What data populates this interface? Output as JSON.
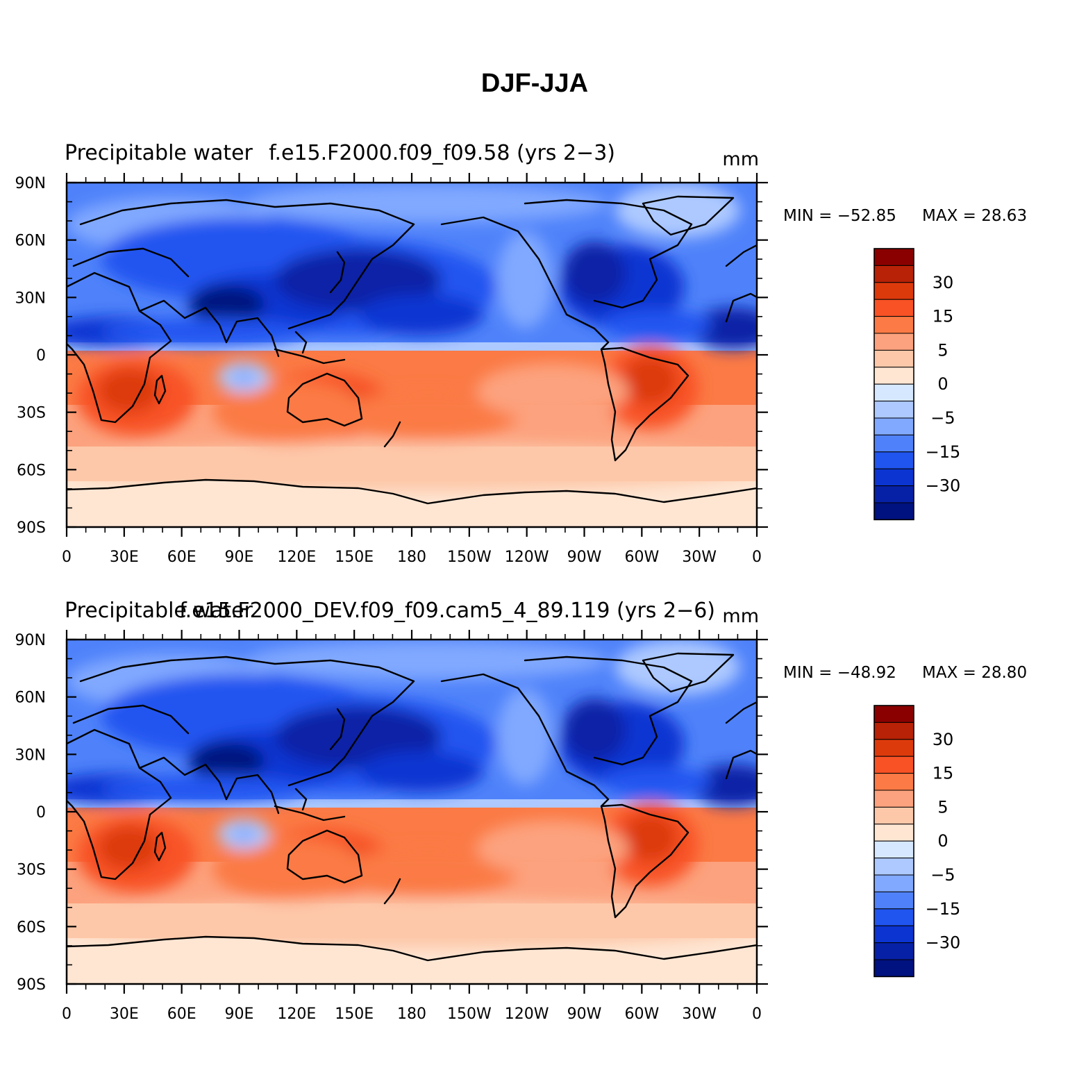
{
  "figure": {
    "title": "DJF-JJA"
  },
  "colorbar_levels": [
    "30",
    "15",
    "5",
    "0",
    "−5",
    "−15",
    "−30"
  ],
  "colorbar_colors": [
    "#8a0000",
    "#b82206",
    "#dd3a0c",
    "#f85225",
    "#fb7a45",
    "#fca27e",
    "#fdc8a9",
    "#fee6d3",
    "#d6e8ff",
    "#adc9ff",
    "#81a9ff",
    "#4f82fa",
    "#2055f0",
    "#0b34d1",
    "#0721a6",
    "#00127f"
  ],
  "x_ticks": [
    "0",
    "30E",
    "60E",
    "90E",
    "120E",
    "150E",
    "180",
    "150W",
    "120W",
    "90W",
    "60W",
    "30W",
    "0"
  ],
  "y_ticks": [
    "90N",
    "60N",
    "30N",
    "0",
    "30S",
    "60S",
    "90S"
  ],
  "panels": [
    {
      "left_title": "Precipitable water",
      "case_title": "f.e15.F2000.f09_f09.58 (yrs 2−3)",
      "units": "mm",
      "min_label": "MIN = −52.85",
      "max_label": "MAX =   28.63"
    },
    {
      "left_title": "Precipitable water",
      "case_title": "f.e15.F2000_DEV.f09_f09.cam5_4_89.119 (yrs 2−6)",
      "units": "mm",
      "min_label": "MIN = −48.92",
      "max_label": "MAX =   28.80"
    }
  ],
  "chart_data": [
    {
      "type": "heatmap",
      "title": "DJF-JJA",
      "subtitle": "Precipitable water — f.e15.F2000.f09_f09.58 (yrs 2−3)",
      "units": "mm",
      "min": -52.85,
      "max": 28.63,
      "lon_range": [
        0,
        360
      ],
      "lat_range": [
        -90,
        90
      ],
      "contour_levels": [
        -40,
        -30,
        -20,
        -15,
        -10,
        -5,
        -2,
        0,
        2,
        5,
        10,
        15,
        20,
        30,
        40
      ]
    },
    {
      "type": "heatmap",
      "title": "DJF-JJA",
      "subtitle": "Precipitable water — f.e15.F2000_DEV.f09_f09.cam5_4_89.119 (yrs 2−6)",
      "units": "mm",
      "min": -48.92,
      "max": 28.8,
      "lon_range": [
        0,
        360
      ],
      "lat_range": [
        -90,
        90
      ],
      "contour_levels": [
        -40,
        -30,
        -20,
        -15,
        -10,
        -5,
        -2,
        0,
        2,
        5,
        10,
        15,
        20,
        30,
        40
      ]
    }
  ]
}
